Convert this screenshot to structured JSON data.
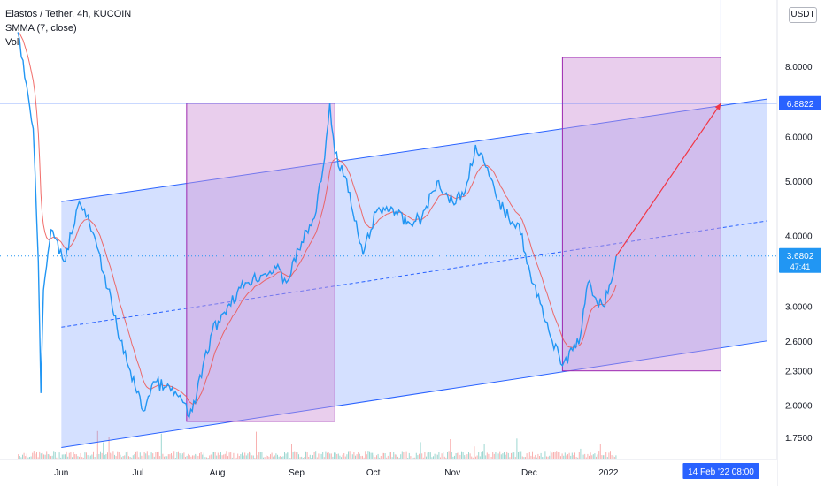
{
  "legend": {
    "symbol": "Elastos / Tether, 4h, KUCOIN",
    "indicator": "SMMA (7, close)",
    "volume": "Vol"
  },
  "currency": "USDT",
  "colors": {
    "price_line": "#2196f3",
    "smma_line": "#ef5350",
    "channel_fill": "#2962ff",
    "box_fill": "#ce93d8",
    "box_border": "#9c27b0",
    "projection": "#f23645",
    "axis_label_bg": "#2962ff",
    "volume_up": "#26a69a",
    "volume_down": "#ef5350"
  },
  "chart_data": {
    "type": "line",
    "title": "Elastos / Tether, 4h, KUCOIN",
    "xlabel": "",
    "ylabel": "",
    "y_scale": "log",
    "ylim": [
      1.6,
      10.5
    ],
    "x_range": [
      "2021-05-08",
      "2022-03-08"
    ],
    "grid": false,
    "y_ticks": [
      {
        "value": 8.0,
        "label": "8.0000"
      },
      {
        "value": 6.0,
        "label": "6.0000"
      },
      {
        "value": 5.0,
        "label": "5.0000"
      },
      {
        "value": 4.0,
        "label": "4.0000"
      },
      {
        "value": 3.0,
        "label": "3.0000"
      },
      {
        "value": 2.6,
        "label": "2.6000"
      },
      {
        "value": 2.3,
        "label": "2.3000"
      },
      {
        "value": 2.0,
        "label": "2.0000"
      },
      {
        "value": 1.75,
        "label": "1.7500"
      }
    ],
    "x_ticks": [
      {
        "date": "2021-06-01",
        "label": "Jun"
      },
      {
        "date": "2021-07-01",
        "label": "Jul"
      },
      {
        "date": "2021-08-01",
        "label": "Aug"
      },
      {
        "date": "2021-09-01",
        "label": "Sep"
      },
      {
        "date": "2021-10-01",
        "label": "Oct"
      },
      {
        "date": "2021-11-01",
        "label": "Nov"
      },
      {
        "date": "2021-12-01",
        "label": "Dec"
      },
      {
        "date": "2022-01-01",
        "label": "2022"
      }
    ],
    "current_price": {
      "value": 3.6802,
      "label": "3.6802",
      "countdown": "47:41"
    },
    "target_price": {
      "value": 6.8822,
      "label": "6.8822"
    },
    "cursor_date": {
      "date": "2022-02-14",
      "label": "14 Feb '22   08:00"
    },
    "series": [
      {
        "values": [
          {
            "date": "2021-05-15",
            "value": 9.2
          },
          {
            "date": "2021-05-17",
            "value": 8.2
          },
          {
            "date": "2021-05-19",
            "value": 7.1
          },
          {
            "date": "2021-05-21",
            "value": 6.2
          },
          {
            "date": "2021-05-23",
            "value": 3.6
          },
          {
            "date": "2021-05-24",
            "value": 2.1
          },
          {
            "date": "2021-05-25",
            "value": 3.2
          },
          {
            "date": "2021-05-28",
            "value": 4.1
          },
          {
            "date": "2021-06-02",
            "value": 3.6
          },
          {
            "date": "2021-06-08",
            "value": 4.6
          },
          {
            "date": "2021-06-12",
            "value": 4.2
          },
          {
            "date": "2021-06-18",
            "value": 3.4
          },
          {
            "date": "2021-06-24",
            "value": 2.6
          },
          {
            "date": "2021-06-28",
            "value": 2.3
          },
          {
            "date": "2021-07-03",
            "value": 1.95
          },
          {
            "date": "2021-07-07",
            "value": 2.2
          },
          {
            "date": "2021-07-12",
            "value": 2.15
          },
          {
            "date": "2021-07-18",
            "value": 2.05
          },
          {
            "date": "2021-07-21",
            "value": 1.9
          },
          {
            "date": "2021-07-24",
            "value": 2.1
          },
          {
            "date": "2021-07-30",
            "value": 2.7
          },
          {
            "date": "2021-08-05",
            "value": 3.0
          },
          {
            "date": "2021-08-12",
            "value": 3.3
          },
          {
            "date": "2021-08-18",
            "value": 3.4
          },
          {
            "date": "2021-08-24",
            "value": 3.5
          },
          {
            "date": "2021-08-28",
            "value": 3.3
          },
          {
            "date": "2021-09-03",
            "value": 3.9
          },
          {
            "date": "2021-09-08",
            "value": 4.3
          },
          {
            "date": "2021-09-12",
            "value": 5.5
          },
          {
            "date": "2021-09-14",
            "value": 6.9
          },
          {
            "date": "2021-09-16",
            "value": 5.6
          },
          {
            "date": "2021-09-20",
            "value": 5.1
          },
          {
            "date": "2021-09-23",
            "value": 4.4
          },
          {
            "date": "2021-09-27",
            "value": 3.7
          },
          {
            "date": "2021-10-02",
            "value": 4.4
          },
          {
            "date": "2021-10-08",
            "value": 4.5
          },
          {
            "date": "2021-10-14",
            "value": 4.2
          },
          {
            "date": "2021-10-20",
            "value": 4.3
          },
          {
            "date": "2021-10-26",
            "value": 5.0
          },
          {
            "date": "2021-11-01",
            "value": 4.6
          },
          {
            "date": "2021-11-06",
            "value": 4.8
          },
          {
            "date": "2021-11-10",
            "value": 5.8
          },
          {
            "date": "2021-11-14",
            "value": 5.3
          },
          {
            "date": "2021-11-18",
            "value": 4.7
          },
          {
            "date": "2021-11-23",
            "value": 4.3
          },
          {
            "date": "2021-11-27",
            "value": 4.2
          },
          {
            "date": "2021-12-02",
            "value": 3.3
          },
          {
            "date": "2021-12-06",
            "value": 3.0
          },
          {
            "date": "2021-12-10",
            "value": 2.6
          },
          {
            "date": "2021-12-14",
            "value": 2.35
          },
          {
            "date": "2021-12-18",
            "value": 2.5
          },
          {
            "date": "2021-12-21",
            "value": 2.65
          },
          {
            "date": "2021-12-24",
            "value": 3.3
          },
          {
            "date": "2021-12-27",
            "value": 3.1
          },
          {
            "date": "2021-12-30",
            "value": 3.0
          },
          {
            "date": "2022-01-02",
            "value": 3.3
          },
          {
            "date": "2022-01-04",
            "value": 3.68
          }
        ]
      }
    ],
    "channel": {
      "upper": {
        "start": {
          "date": "2021-06-01",
          "value": 4.6
        },
        "end": {
          "date": "2022-03-04",
          "value": 7.0
        }
      },
      "lower": {
        "start": {
          "date": "2021-06-01",
          "value": 1.68
        },
        "end": {
          "date": "2022-03-04",
          "value": 2.6
        }
      },
      "mid": {
        "start": {
          "date": "2021-06-01",
          "value": 2.75
        },
        "end": {
          "date": "2022-03-04",
          "value": 4.25
        }
      }
    },
    "boxes": [
      {
        "from": "2021-07-20",
        "to": "2021-09-16",
        "top": 6.88,
        "bottom": 1.87
      },
      {
        "from": "2021-12-14",
        "to": "2022-02-14",
        "top": 8.3,
        "bottom": 2.3
      }
    ],
    "projection": {
      "from": {
        "date": "2022-01-04",
        "value": 3.68
      },
      "to": {
        "date": "2022-02-14",
        "value": 6.8822
      }
    }
  }
}
